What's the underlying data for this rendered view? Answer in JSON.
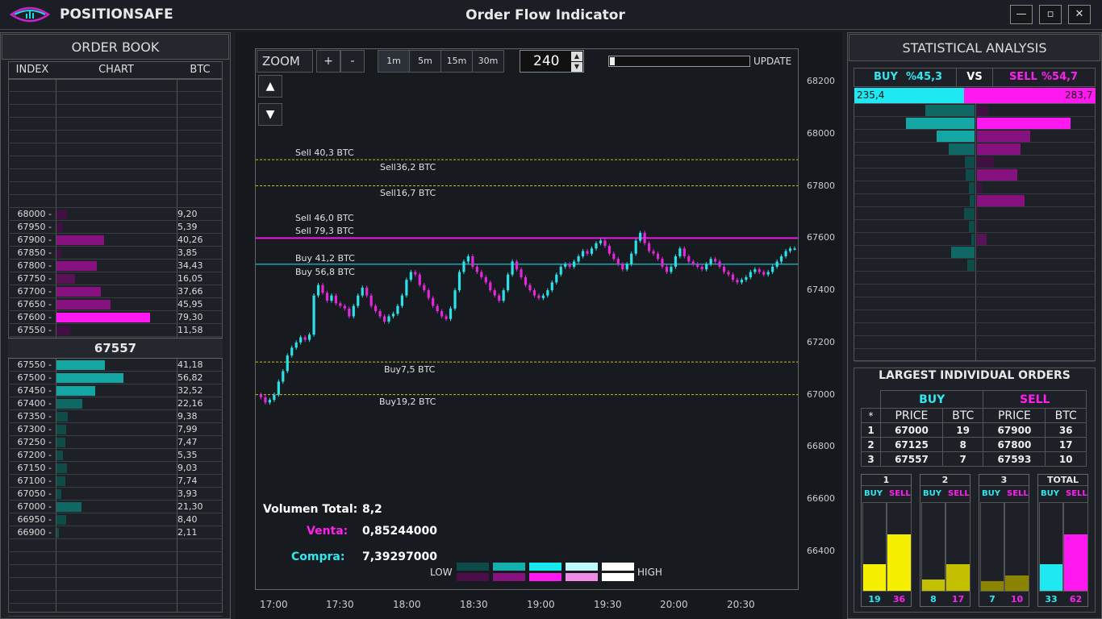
{
  "app": {
    "brand": "POSITIONSAFE",
    "title": "Order Flow Indicator"
  },
  "window_controls": {
    "minimize": "—",
    "maximize": "▫",
    "close": "✕"
  },
  "order_book": {
    "title": "ORDER BOOK",
    "columns": [
      "INDEX",
      "CHART",
      "BTC"
    ],
    "mid_price": "67557",
    "sells": [
      {
        "index": "68000 -",
        "btc": "9,20",
        "v": 9.2
      },
      {
        "index": "67950 -",
        "btc": "5,39",
        "v": 5.39
      },
      {
        "index": "67900 -",
        "btc": "40,26",
        "v": 40.26
      },
      {
        "index": "67850 -",
        "btc": "3,85",
        "v": 3.85
      },
      {
        "index": "67800 -",
        "btc": "34,43",
        "v": 34.43
      },
      {
        "index": "67750 -",
        "btc": "16,05",
        "v": 16.05
      },
      {
        "index": "67700 -",
        "btc": "37,66",
        "v": 37.66
      },
      {
        "index": "67650 -",
        "btc": "45,95",
        "v": 45.95
      },
      {
        "index": "67600 -",
        "btc": "79,30",
        "v": 79.3
      },
      {
        "index": "67550 -",
        "btc": "11,58",
        "v": 11.58
      }
    ],
    "buys": [
      {
        "index": "67550 -",
        "btc": "41,18",
        "v": 41.18
      },
      {
        "index": "67500 -",
        "btc": "56,82",
        "v": 56.82
      },
      {
        "index": "67450 -",
        "btc": "32,52",
        "v": 32.52
      },
      {
        "index": "67400 -",
        "btc": "22,16",
        "v": 22.16
      },
      {
        "index": "67350 -",
        "btc": "9,38",
        "v": 9.38
      },
      {
        "index": "67300 -",
        "btc": "7,99",
        "v": 7.99
      },
      {
        "index": "67250 -",
        "btc": "7,47",
        "v": 7.47
      },
      {
        "index": "67200 -",
        "btc": "5,35",
        "v": 5.35
      },
      {
        "index": "67150 -",
        "btc": "9,03",
        "v": 9.03
      },
      {
        "index": "67100 -",
        "btc": "7,74",
        "v": 7.74
      },
      {
        "index": "67050 -",
        "btc": "3,93",
        "v": 3.93
      },
      {
        "index": "67000 -",
        "btc": "21,30",
        "v": 21.3
      },
      {
        "index": "66950 -",
        "btc": "8,40",
        "v": 8.4
      },
      {
        "index": "66900 -",
        "btc": "2,11",
        "v": 2.11
      }
    ]
  },
  "toolbar": {
    "zoom_label": "ZOOM",
    "zoom_in": "+",
    "zoom_out": "-",
    "timeframes": [
      "1m",
      "5m",
      "15m",
      "30m"
    ],
    "active_timeframe": "1m",
    "count_value": "240",
    "update_label": "UPDATE",
    "up_arrow": "▲",
    "down_arrow": "▼"
  },
  "chart_data": {
    "type": "candlestick",
    "x_ticks": [
      "17:00",
      "17:30",
      "18:00",
      "18:30",
      "19:00",
      "19:30",
      "20:00",
      "20:30"
    ],
    "y_ticks": [
      "68200",
      "68000",
      "67800",
      "67600",
      "67400",
      "67200",
      "67000",
      "66800",
      "66600",
      "66400"
    ],
    "ylim": [
      66300,
      68300
    ],
    "levels": [
      {
        "label": "Sell 40,3 BTC",
        "price": 67900,
        "style": "dashed-yellow"
      },
      {
        "label": "Sell36,2 BTC",
        "price": 67900,
        "style": "dashed-yellow"
      },
      {
        "label": "Sell16,7 BTC",
        "price": 67800,
        "style": "dashed-yellow"
      },
      {
        "label": "Sell 46,0 BTC",
        "price": 67600,
        "style": "solid-magenta"
      },
      {
        "label": "Sell 79,3 BTC",
        "price": 67600,
        "style": "solid-magenta"
      },
      {
        "label": "Buy 41,2 BTC",
        "price": 67500,
        "style": "solid-cyan"
      },
      {
        "label": "Buy 56,8 BTC",
        "price": 67500,
        "style": "solid-cyan"
      },
      {
        "label": "Buy7,5 BTC",
        "price": 67125,
        "style": "dashed-yellow"
      },
      {
        "label": "Buy19,2 BTC",
        "price": 67000,
        "style": "dashed-yellow"
      }
    ],
    "close_series": [
      67000,
      66990,
      66970,
      66980,
      67000,
      67050,
      67090,
      67150,
      67180,
      67200,
      67220,
      67210,
      67230,
      67380,
      67420,
      67390,
      67360,
      67380,
      67350,
      67340,
      67330,
      67300,
      67340,
      67380,
      67410,
      67380,
      67340,
      67320,
      67300,
      67280,
      67300,
      67310,
      67340,
      67380,
      67440,
      67470,
      67460,
      67420,
      67400,
      67370,
      67340,
      67320,
      67300,
      67290,
      67330,
      67400,
      67470,
      67510,
      67530,
      67490,
      67470,
      67450,
      67430,
      67400,
      67380,
      67360,
      67400,
      67460,
      67510,
      67480,
      67450,
      67420,
      67400,
      67380,
      67370,
      67380,
      67400,
      67430,
      67460,
      67490,
      67500,
      67490,
      67510,
      67530,
      67550,
      67540,
      67560,
      67580,
      67590,
      67570,
      67540,
      67520,
      67500,
      67480,
      67500,
      67540,
      67590,
      67620,
      67580,
      67550,
      67540,
      67520,
      67490,
      67470,
      67490,
      67530,
      67560,
      67530,
      67510,
      67500,
      67490,
      67480,
      67500,
      67520,
      67510,
      67490,
      67470,
      67460,
      67440,
      67430,
      67440,
      67450,
      67470,
      67480,
      67470,
      67460,
      67470,
      67490,
      67510,
      67530,
      67550,
      67560,
      67560
    ]
  },
  "volume": {
    "total_label": "Volumen Total:",
    "total_value": "8,2",
    "sell_label": "Venta:",
    "sell_value": "0,85244000",
    "buy_label": "Compra:",
    "buy_value": "7,39297000"
  },
  "legend": {
    "low": "LOW",
    "high": "HIGH",
    "buy_colors": [
      "#0d4a48",
      "#14b0ad",
      "#18e8ee",
      "#bffaff",
      "#ffffff"
    ],
    "sell_colors": [
      "#4a0f48",
      "#86117f",
      "#ff18f4",
      "#f08ae6",
      "#ffffff"
    ]
  },
  "stats": {
    "title": "STATISTICAL ANALYSIS",
    "buy_label": "BUY",
    "buy_pct": "%45,3",
    "vs": "VS",
    "sell_label": "SELL",
    "sell_pct": "%54,7",
    "buy_total": "235,4",
    "sell_total": "283,7",
    "buy_depth": [
      0.52,
      0.72,
      0.4,
      0.27,
      0.1,
      0.09,
      0.06,
      0.05,
      0.11,
      0.06,
      0.03,
      0.25,
      0.08
    ],
    "sell_depth": [
      0.12,
      0.98,
      0.56,
      0.46,
      0.18,
      0.42,
      0.05,
      0.5,
      0.02,
      0.02,
      0.1,
      0.0,
      0.0
    ]
  },
  "largest_orders": {
    "title": "LARGEST INDIVIDUAL ORDERS",
    "buy_label": "BUY",
    "sell_label": "SELL",
    "columns": [
      "*",
      "PRICE",
      "BTC",
      "PRICE",
      "BTC"
    ],
    "rows": [
      {
        "n": "1",
        "bp": "67000",
        "bb": "19",
        "sp": "67900",
        "sb": "36"
      },
      {
        "n": "2",
        "bp": "67125",
        "bb": "8",
        "sp": "67800",
        "sb": "17"
      },
      {
        "n": "3",
        "bp": "67557",
        "bb": "7",
        "sp": "67593",
        "sb": "10"
      }
    ]
  },
  "mini_bars": [
    {
      "title": "1",
      "buy": "19",
      "sell": "36",
      "buy_v": 19,
      "sell_v": 36,
      "color": "#f6f000"
    },
    {
      "title": "2",
      "buy": "8",
      "sell": "17",
      "buy_v": 8,
      "sell_v": 17,
      "color": "#c4c000"
    },
    {
      "title": "3",
      "buy": "7",
      "sell": "10",
      "buy_v": 7,
      "sell_v": 10,
      "color": "#8a8400"
    },
    {
      "title": "TOTAL",
      "buy": "33",
      "sell": "62",
      "buy_v": 33,
      "sell_v": 62,
      "color": "magenta"
    }
  ],
  "mini_labels": {
    "buy": "BUY",
    "sell": "SELL"
  }
}
